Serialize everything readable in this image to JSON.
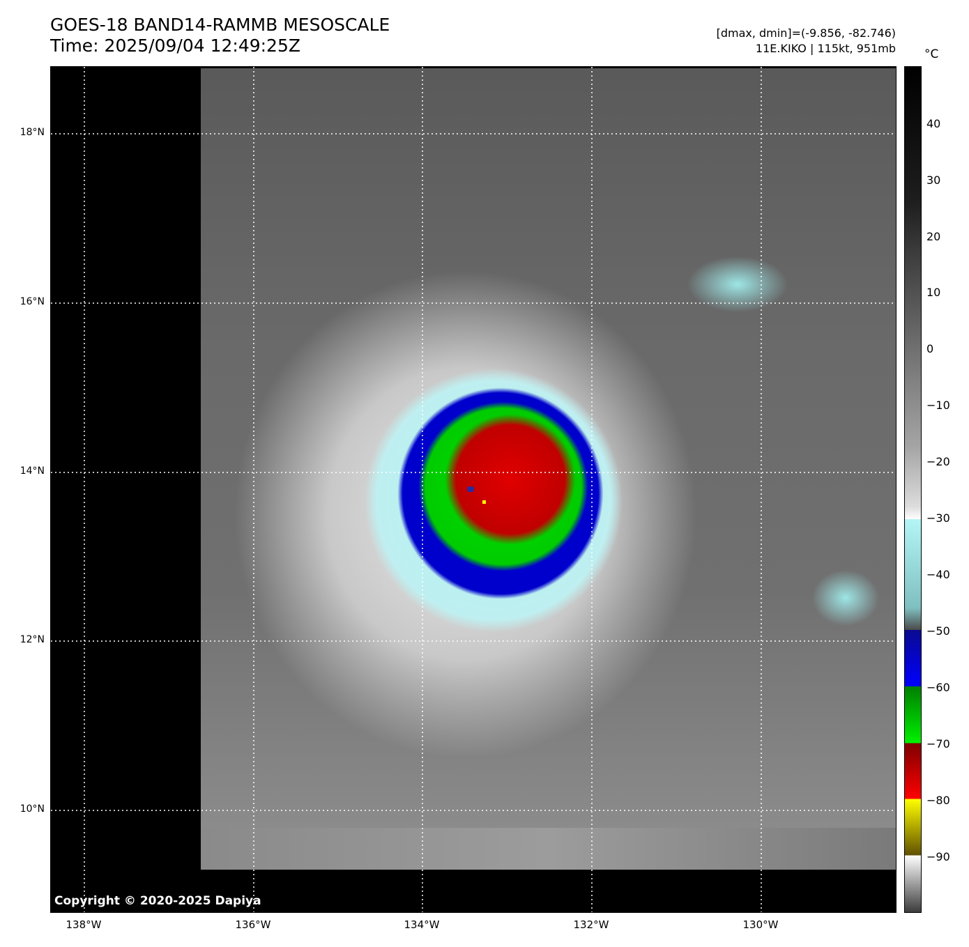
{
  "header": {
    "title": "GOES-18 BAND14-RAMMB MESOSCALE",
    "time": "Time: 2025/09/04 12:49:25Z",
    "range_info": "[dmax, dmin]=(-9.856, -82.746)",
    "storm_info": "11E.KIKO | 115kt, 951mb"
  },
  "map": {
    "copyright": "Copyright © 2020-2025 Dapiya",
    "lat_labels": [
      "18°N",
      "16°N",
      "14°N",
      "12°N",
      "10°N"
    ],
    "lon_labels": [
      "138°W",
      "136°W",
      "134°W",
      "132°W",
      "130°W"
    ]
  },
  "colorbar": {
    "unit": "°C",
    "ticks": [
      "40",
      "30",
      "20",
      "10",
      "0",
      "−10",
      "−20",
      "−30",
      "−40",
      "−50",
      "−60",
      "−70",
      "−80",
      "−90"
    ],
    "colors": [
      "#000000",
      "#ffffff",
      "#b4f5f5",
      "#0000cc",
      "#00dd00",
      "#dd0000",
      "#ffff00"
    ]
  }
}
